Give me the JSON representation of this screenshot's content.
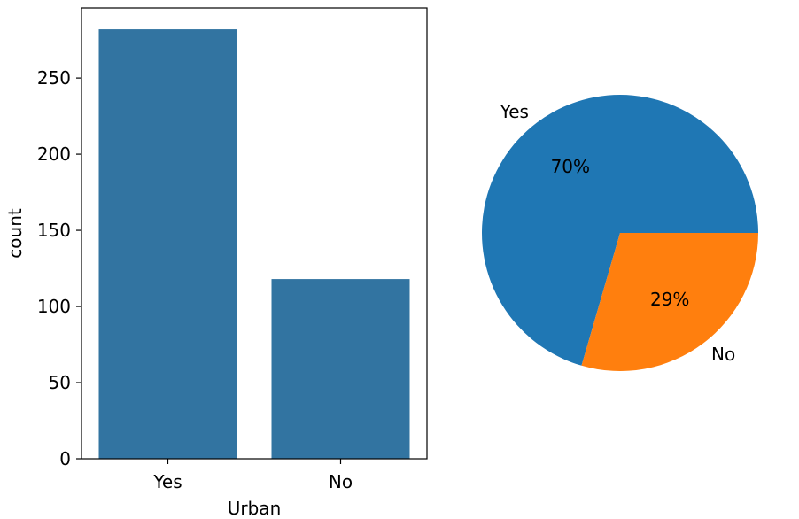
{
  "chart_data": [
    {
      "type": "bar",
      "categories": [
        "Yes",
        "No"
      ],
      "values": [
        282,
        118
      ],
      "xlabel": "Urban",
      "ylabel": "count",
      "ylim": [
        0,
        296
      ],
      "yticks": [
        "0",
        "50",
        "100",
        "150",
        "200",
        "250"
      ],
      "color": "#3274a1"
    },
    {
      "type": "pie",
      "labels": [
        "Yes",
        "No"
      ],
      "values": [
        282,
        118
      ],
      "pct_labels": [
        "70%",
        "29%"
      ],
      "colors": [
        "#1f77b4",
        "#ff7f0e"
      ]
    }
  ]
}
